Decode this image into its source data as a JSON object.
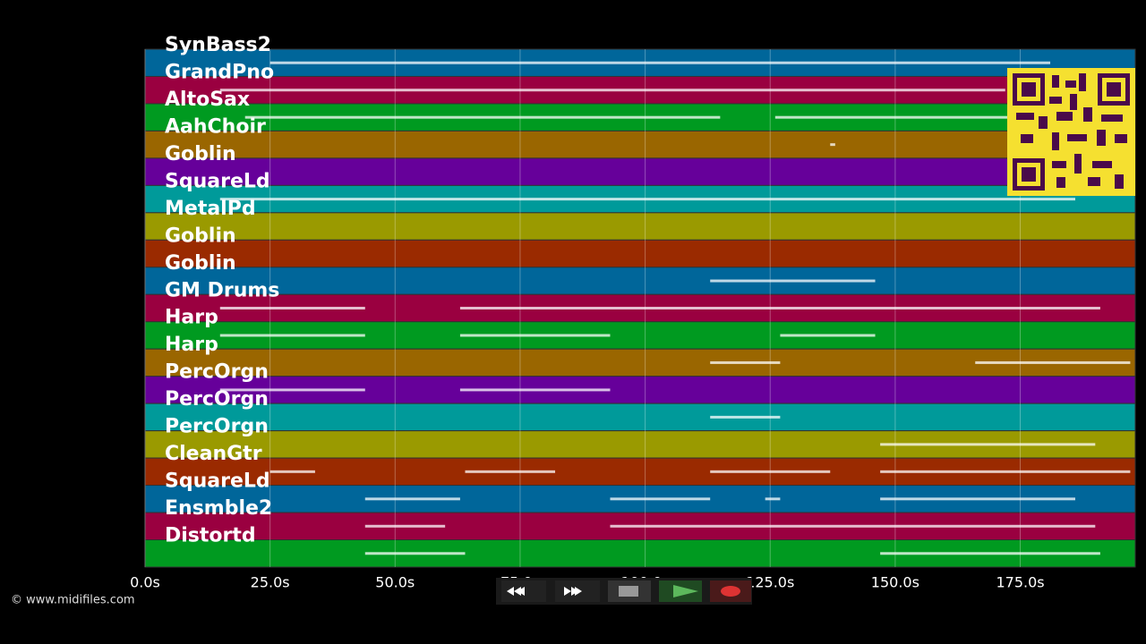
{
  "tracks": [
    {
      "name": "SynBass2",
      "color": "#00669a",
      "notes": [
        [
          25,
          181
        ]
      ]
    },
    {
      "name": "GrandPno",
      "color": "#9a0040",
      "notes": [
        [
          15,
          172
        ]
      ]
    },
    {
      "name": "AltoSax",
      "color": "#009a20",
      "notes": [
        [
          20,
          115
        ],
        [
          126,
          174
        ]
      ]
    },
    {
      "name": "AahChoir",
      "color": "#9a6600",
      "notes": [
        [
          137,
          138
        ]
      ]
    },
    {
      "name": "Goblin",
      "color": "#66009a",
      "notes": []
    },
    {
      "name": "SquareLd",
      "color": "#009a9a",
      "notes": [
        [
          15,
          186
        ]
      ]
    },
    {
      "name": "MetalPd",
      "color": "#9a9a00",
      "notes": []
    },
    {
      "name": "Goblin",
      "color": "#9a2a00",
      "notes": []
    },
    {
      "name": "Goblin",
      "color": "#00669a",
      "notes": [
        [
          113,
          146
        ]
      ]
    },
    {
      "name": "GM Drums",
      "color": "#9a0040",
      "notes": [
        [
          15,
          44
        ],
        [
          63,
          191
        ]
      ]
    },
    {
      "name": "Harp",
      "color": "#009a20",
      "notes": [
        [
          15,
          44
        ],
        [
          63,
          93
        ],
        [
          127,
          146
        ]
      ]
    },
    {
      "name": "Harp",
      "color": "#9a6600",
      "notes": [
        [
          113,
          127
        ],
        [
          166,
          197
        ]
      ]
    },
    {
      "name": "PercOrgn",
      "color": "#66009a",
      "notes": [
        [
          15,
          44
        ],
        [
          63,
          93
        ]
      ]
    },
    {
      "name": "PercOrgn",
      "color": "#009a9a",
      "notes": [
        [
          113,
          127
        ]
      ]
    },
    {
      "name": "PercOrgn",
      "color": "#9a9a00",
      "notes": [
        [
          147,
          190
        ]
      ]
    },
    {
      "name": "CleanGtr",
      "color": "#9a2a00",
      "notes": [
        [
          25,
          34
        ],
        [
          64,
          82
        ],
        [
          113,
          137
        ],
        [
          147,
          197
        ]
      ]
    },
    {
      "name": "SquareLd",
      "color": "#00669a",
      "notes": [
        [
          44,
          63
        ],
        [
          93,
          113
        ],
        [
          124,
          127
        ],
        [
          147,
          186
        ]
      ]
    },
    {
      "name": "Ensmble2",
      "color": "#9a0040",
      "notes": [
        [
          44,
          60
        ],
        [
          93,
          190
        ]
      ]
    },
    {
      "name": "Distortd",
      "color": "#009a20",
      "notes": [
        [
          44,
          64
        ],
        [
          147,
          191
        ]
      ]
    }
  ],
  "xlim": [
    0,
    198
  ],
  "xticks": [
    {
      "value": 0,
      "label": "0.0s"
    },
    {
      "value": 25,
      "label": "25.0s"
    },
    {
      "value": 50,
      "label": "50.0s"
    },
    {
      "value": 75,
      "label": "75.0s"
    },
    {
      "value": 100,
      "label": "100.0s"
    },
    {
      "value": 125,
      "label": "125.0s"
    },
    {
      "value": 150,
      "label": "150.0s"
    },
    {
      "value": 175,
      "label": "175.0s"
    }
  ],
  "copyright": "© www.midifiles.com"
}
